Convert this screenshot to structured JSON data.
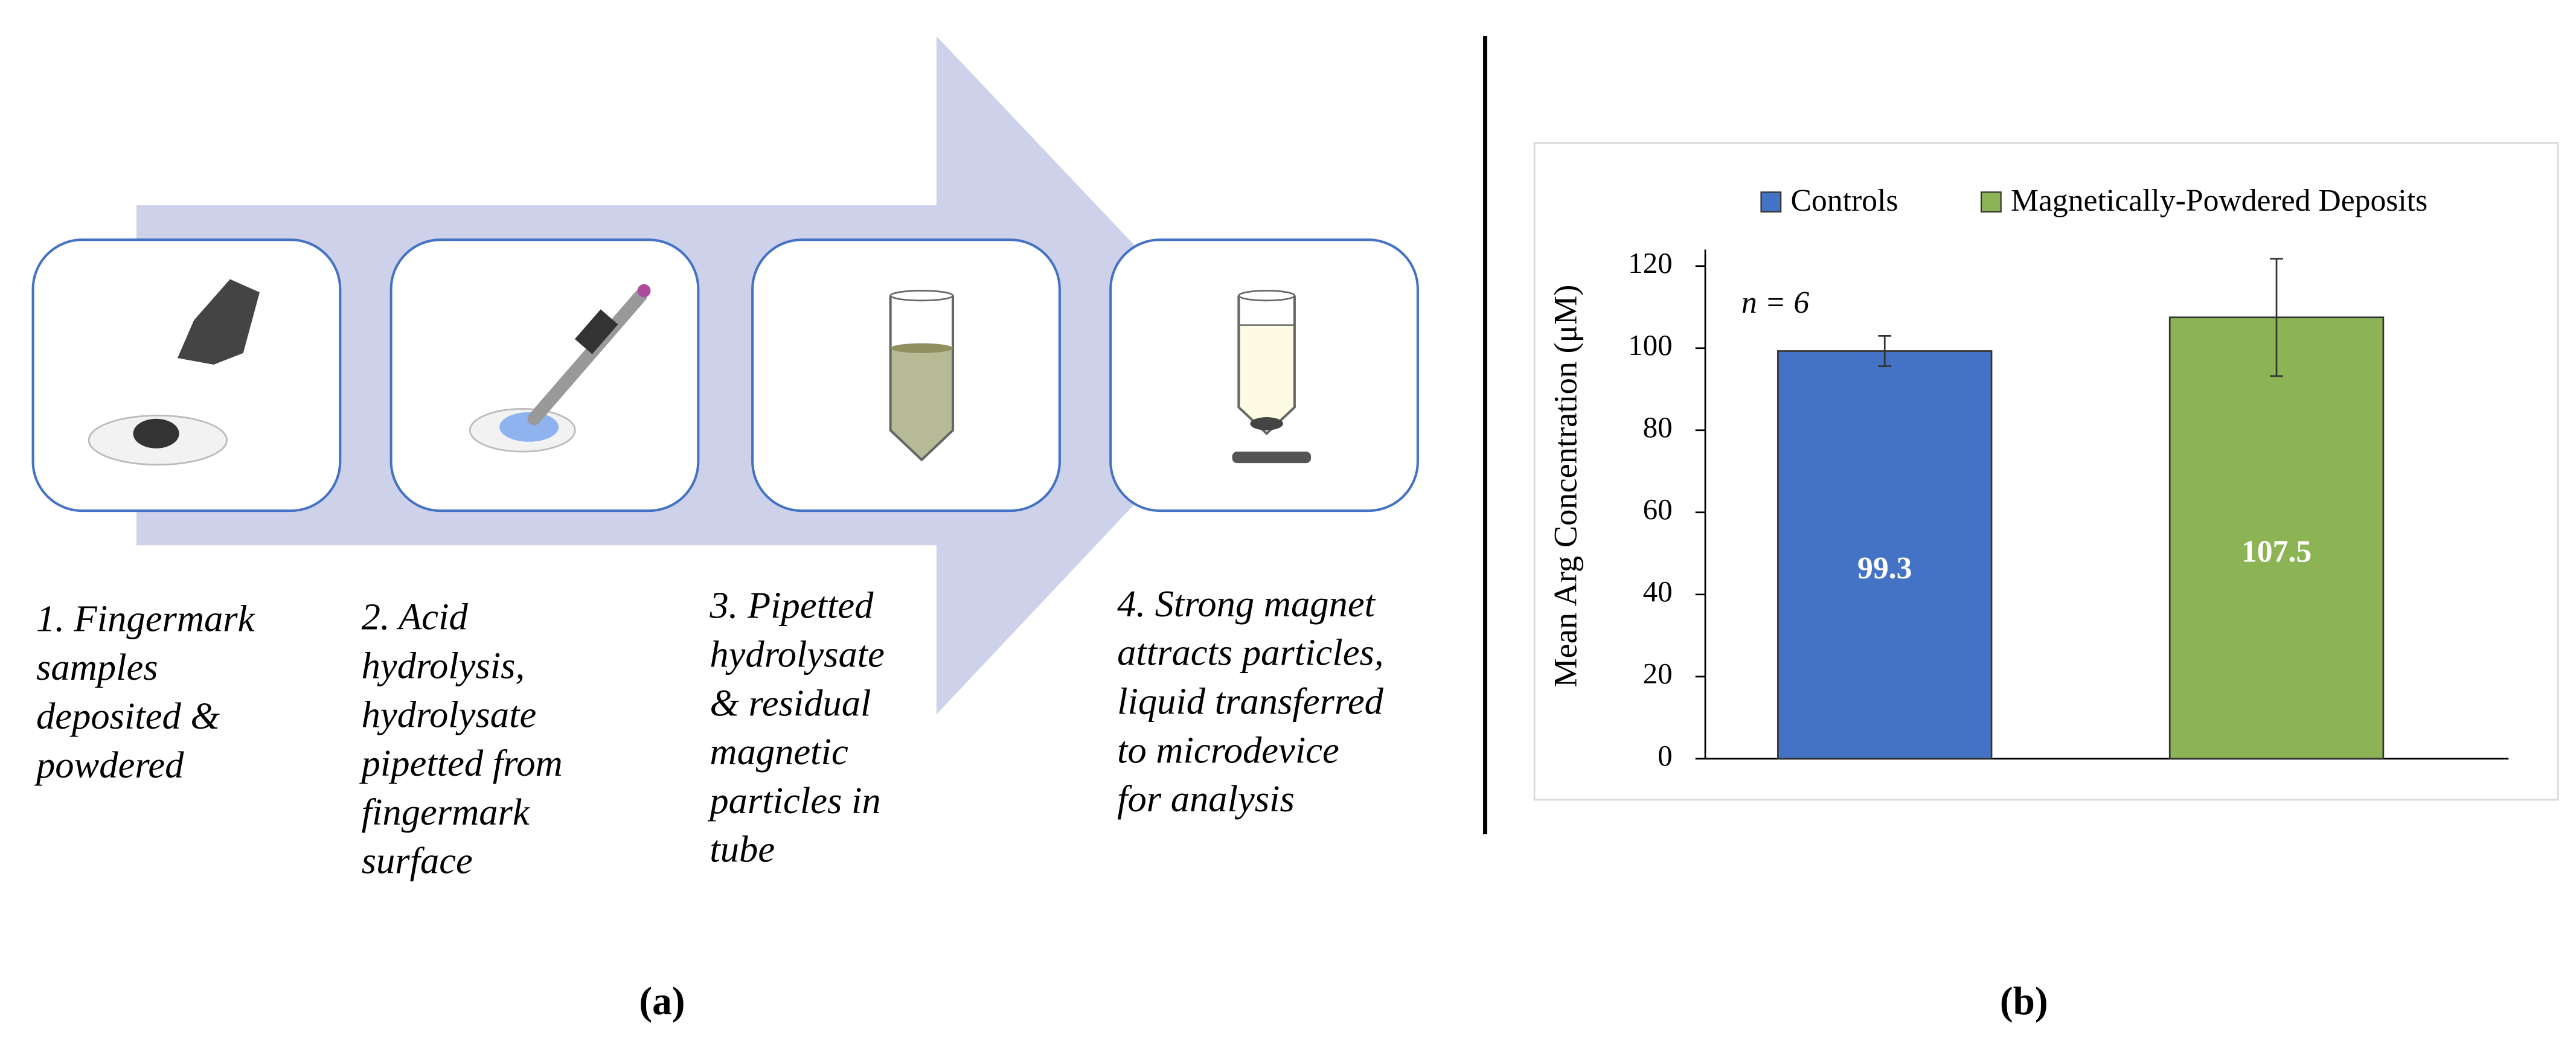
{
  "diagram": {
    "steps": [
      {
        "lines": [
          "1. Fingermark",
          "samples",
          "deposited &",
          "powdered"
        ]
      },
      {
        "lines": [
          "2. Acid",
          "hydrolysis,",
          "hydrolysate",
          "pipetted from",
          "fingermark",
          "surface"
        ]
      },
      {
        "lines": [
          "3. Pipetted",
          "hydrolysate",
          "& residual",
          "magnetic",
          "particles in",
          "tube"
        ]
      },
      {
        "lines": [
          "4. Strong magnet",
          "attracts particles,",
          "liquid transferred",
          "to microdevice",
          "for analysis"
        ]
      }
    ],
    "label": "(a)"
  },
  "chart_data": {
    "type": "bar",
    "y_label": "Mean Arg Concentration (μM)",
    "annotation": "n = 6",
    "categories": [
      null,
      null
    ],
    "series": [
      {
        "name": "Controls",
        "color": "#4472c4",
        "values": [
          99.3,
          null
        ],
        "errors": [
          3.7,
          null
        ]
      },
      {
        "name": "Magnetically-Powdered Deposits",
        "color": "#8cb455",
        "values": [
          null,
          107.5
        ],
        "errors": [
          null,
          14.3
        ]
      }
    ],
    "ylim": [
      0,
      124
    ],
    "yticks": [
      0,
      20,
      40,
      60,
      80,
      100,
      120
    ],
    "label": "(b)"
  }
}
